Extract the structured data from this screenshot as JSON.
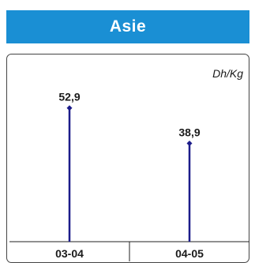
{
  "chart_data": {
    "type": "bar",
    "title": "Asie",
    "unit_label": "Dh/Kg",
    "categories": [
      "03-04",
      "04-05"
    ],
    "values": [
      52.9,
      38.9
    ],
    "value_labels": [
      "52,9",
      "38,9"
    ],
    "ylim": [
      0,
      70
    ],
    "grid": false,
    "colors": {
      "title_bg": "#1a8fd4",
      "stem": "#1c1c8a",
      "frame": "#444444",
      "axis": "#222222"
    }
  }
}
